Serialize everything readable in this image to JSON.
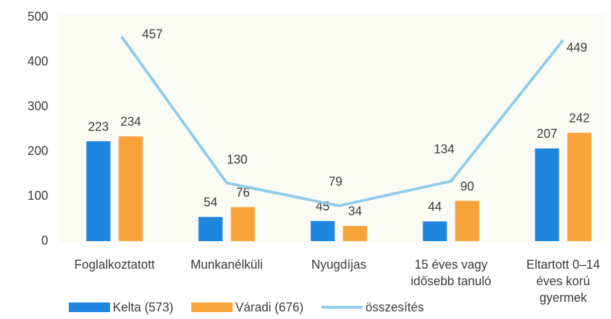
{
  "chart_data": {
    "type": "bar_line",
    "categories": [
      [
        "Foglalkoztatott"
      ],
      [
        "Munkanélküli"
      ],
      [
        "Nyugdíjas"
      ],
      [
        "15 éves vagy",
        "idősebb tanuló"
      ],
      [
        "Eltartott 0–14",
        "éves korú",
        "gyermek"
      ]
    ],
    "series": [
      {
        "name": "Kelta (573)",
        "color": "#1f86e0",
        "kind": "bar",
        "values": [
          223,
          54,
          45,
          44,
          207
        ]
      },
      {
        "name": "Váradi (676)",
        "color": "#f8a33a",
        "kind": "bar",
        "values": [
          234,
          76,
          34,
          90,
          242
        ]
      },
      {
        "name": "összesítés",
        "color": "#8ecbea",
        "kind": "line",
        "values": [
          457,
          130,
          79,
          134,
          449
        ]
      }
    ],
    "ylim": [
      0,
      500
    ],
    "yticks": [
      0,
      100,
      200,
      300,
      400,
      500
    ],
    "grid": false,
    "legend": "bottom"
  }
}
